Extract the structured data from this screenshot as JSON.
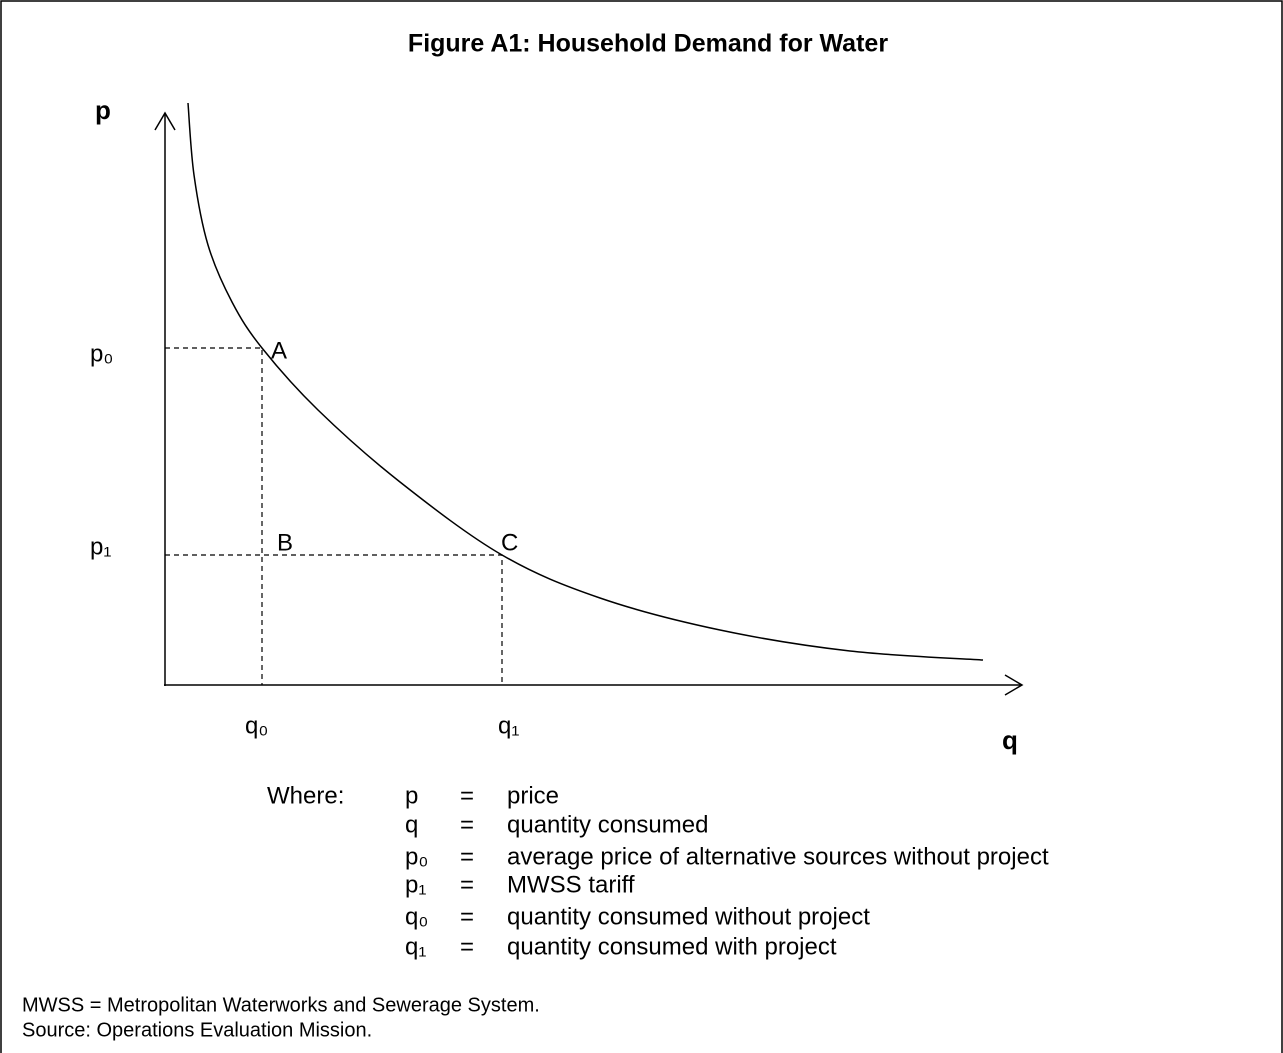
{
  "header": {
    "title": "Figure A1: Household Demand for Water"
  },
  "axes": {
    "y_label": "p",
    "x_label": "q"
  },
  "ticks": {
    "p0": "p₀",
    "p1": "p₁",
    "q0": "q₀",
    "q1": "q₁"
  },
  "points": {
    "a": "A",
    "b": "B",
    "c": "C"
  },
  "legend": {
    "intro": "Where:",
    "rows": [
      {
        "symbol": "p",
        "sign": "=",
        "meaning": "price"
      },
      {
        "symbol": "q",
        "sign": "=",
        "meaning": "quantity consumed"
      },
      {
        "symbol": "p₀",
        "sign": "=",
        "meaning": "average price of alternative sources without project"
      },
      {
        "symbol": "p₁",
        "sign": "=",
        "meaning": "MWSS tariff"
      },
      {
        "symbol": "q₀",
        "sign": "=",
        "meaning": "quantity consumed without project"
      },
      {
        "symbol": "q₁",
        "sign": "=",
        "meaning": "quantity consumed with project"
      }
    ]
  },
  "notes": [
    "MWSS = Metropolitan Waterworks and Sewerage System.",
    "Source: Operations Evaluation Mission."
  ]
}
